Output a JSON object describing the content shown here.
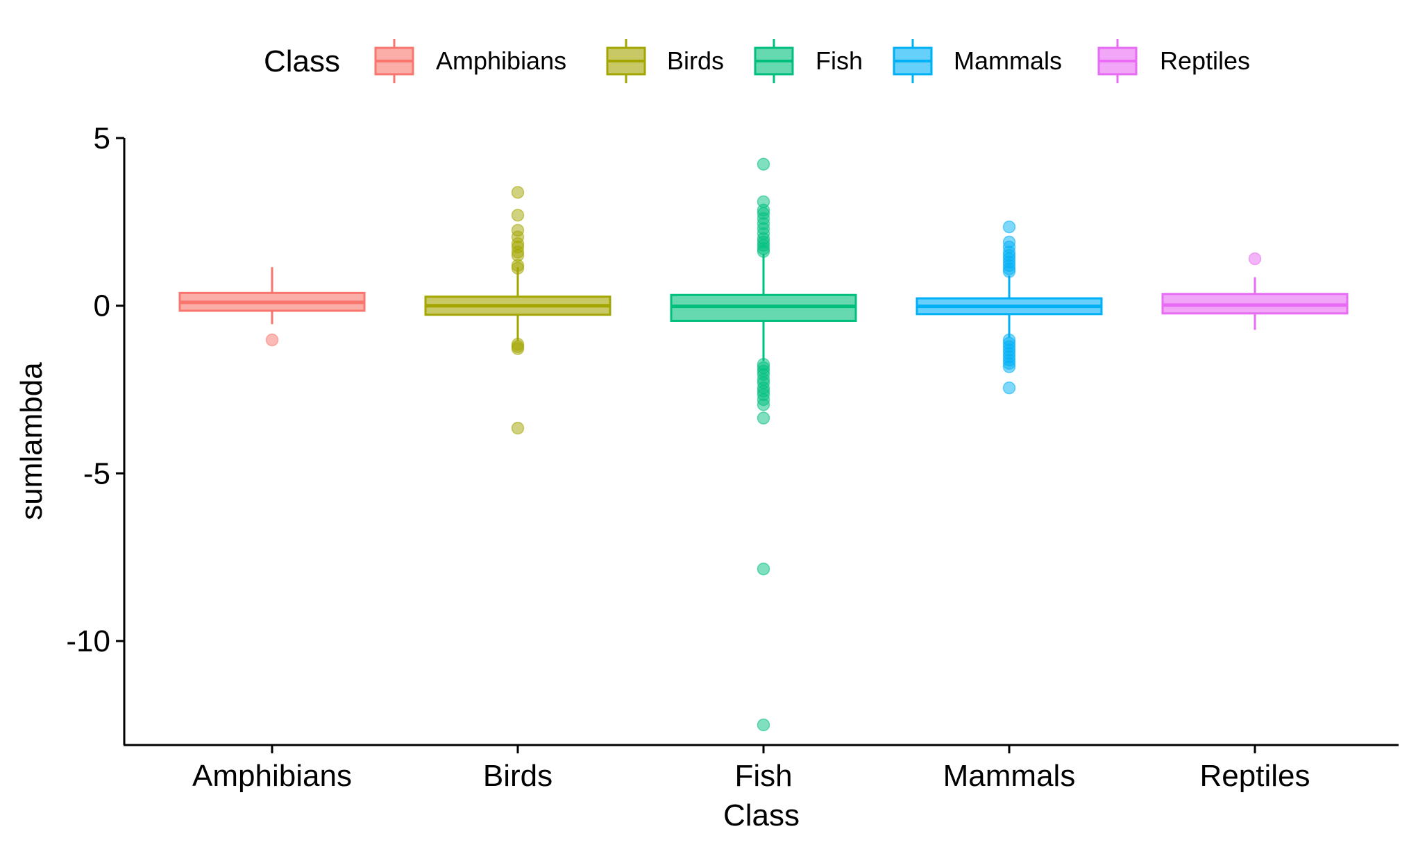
{
  "chart_data": {
    "type": "boxplot",
    "title": "",
    "xlabel": "Class",
    "ylabel": "sumlambda",
    "ylim": [
      -13.1,
      5.0
    ],
    "yticks": [
      5,
      0,
      -5,
      -10
    ],
    "ytick_labels": [
      "5",
      "0",
      "-5",
      "-10"
    ],
    "legend": {
      "title": "Class",
      "position": "top"
    },
    "grid": false,
    "categories": [
      "Amphibians",
      "Birds",
      "Fish",
      "Mammals",
      "Reptiles"
    ],
    "series": [
      {
        "name": "Amphibians",
        "color": "#F8766D",
        "fill": "#FBADA7",
        "whisker_low": -0.55,
        "q1": -0.15,
        "median": 0.1,
        "q3": 0.38,
        "whisker_high": 1.15,
        "outliers": [
          -1.02
        ]
      },
      {
        "name": "Birds",
        "color": "#A3A500",
        "fill": "#C8C966",
        "whisker_low": -1.05,
        "q1": -0.27,
        "median": 0.0,
        "q3": 0.27,
        "whisker_high": 1.15,
        "outliers": [
          3.38,
          2.7,
          2.25,
          2.05,
          1.85,
          1.75,
          1.6,
          1.5,
          1.2,
          1.12,
          -1.15,
          -1.22,
          -1.28,
          -3.65
        ]
      },
      {
        "name": "Fish",
        "color": "#00BF7D",
        "fill": "#66D9B1",
        "whisker_low": -1.65,
        "q1": -0.45,
        "median": -0.02,
        "q3": 0.32,
        "whisker_high": 1.55,
        "outliers": [
          4.22,
          3.1,
          2.85,
          2.75,
          2.6,
          2.45,
          2.3,
          2.15,
          2.0,
          1.9,
          1.8,
          1.7,
          1.62,
          -1.75,
          -1.85,
          -1.95,
          -2.05,
          -2.2,
          -2.3,
          -2.45,
          -2.55,
          -2.65,
          -2.8,
          -2.95,
          -3.35,
          -7.85,
          -12.5
        ]
      },
      {
        "name": "Mammals",
        "color": "#00B0F6",
        "fill": "#66D0FA",
        "whisker_low": -0.95,
        "q1": -0.25,
        "median": -0.02,
        "q3": 0.22,
        "whisker_high": 0.9,
        "outliers": [
          2.35,
          1.9,
          1.75,
          1.6,
          1.5,
          1.4,
          1.3,
          1.2,
          1.1,
          1.02,
          -1.02,
          -1.12,
          -1.22,
          -1.32,
          -1.42,
          -1.52,
          -1.62,
          -1.72,
          -1.82,
          -2.45
        ]
      },
      {
        "name": "Reptiles",
        "color": "#E76BF3",
        "fill": "#F1A6F8",
        "whisker_low": -0.72,
        "q1": -0.23,
        "median": 0.02,
        "q3": 0.35,
        "whisker_high": 0.85,
        "outliers": [
          1.4
        ]
      }
    ]
  }
}
